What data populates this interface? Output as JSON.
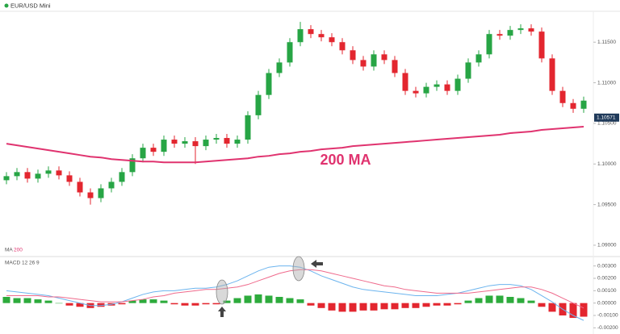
{
  "header": {
    "instrument": "EUR/USD Mini"
  },
  "chart_data": [
    {
      "type": "candlestick",
      "open": [
        1.098,
        1.0985,
        1.099,
        1.0982,
        1.0988,
        1.0992,
        1.0986,
        1.0978,
        1.0965,
        1.0958,
        1.097,
        1.0978,
        1.099,
        1.1007,
        1.102,
        1.1015,
        1.103,
        1.1025,
        1.1028,
        1.1022,
        1.103,
        1.1032,
        1.1025,
        1.103,
        1.106,
        1.1085,
        1.1112,
        1.1125,
        1.115,
        1.1166,
        1.116,
        1.1156,
        1.115,
        1.114,
        1.1128,
        1.112,
        1.1135,
        1.1128,
        1.1112,
        1.109,
        1.1087,
        1.1095,
        1.1098,
        1.109,
        1.1105,
        1.1125,
        1.1135,
        1.116,
        1.1158,
        1.1165,
        1.1167,
        1.1163,
        1.113,
        1.109,
        1.1075,
        1.1068
      ],
      "high": [
        1.099,
        1.0995,
        1.0995,
        1.0993,
        1.0997,
        1.0997,
        1.0991,
        1.0983,
        1.097,
        1.0975,
        1.0983,
        1.0995,
        1.1012,
        1.1025,
        1.1025,
        1.1035,
        1.1035,
        1.1033,
        1.1033,
        1.1035,
        1.1037,
        1.1037,
        1.1035,
        1.1065,
        1.109,
        1.1117,
        1.113,
        1.1155,
        1.1175,
        1.1171,
        1.1165,
        1.1161,
        1.1155,
        1.1145,
        1.1133,
        1.114,
        1.114,
        1.1133,
        1.1117,
        1.1095,
        1.11,
        1.1103,
        1.1103,
        1.111,
        1.113,
        1.114,
        1.1165,
        1.1165,
        1.117,
        1.1172,
        1.1172,
        1.1168,
        1.1135,
        1.1095,
        1.108,
        1.1083
      ],
      "low": [
        1.0975,
        1.098,
        1.0977,
        1.0977,
        1.0983,
        1.0981,
        1.0973,
        1.096,
        1.095,
        1.0953,
        1.0965,
        1.0973,
        1.0985,
        1.1002,
        1.101,
        1.101,
        1.102,
        1.102,
        1.1,
        1.1017,
        1.1025,
        1.102,
        1.102,
        1.1025,
        1.1055,
        1.108,
        1.1107,
        1.112,
        1.1145,
        1.1155,
        1.1151,
        1.1145,
        1.1135,
        1.1123,
        1.1115,
        1.1115,
        1.1123,
        1.1107,
        1.1085,
        1.1082,
        1.1082,
        1.109,
        1.1085,
        1.1085,
        1.11,
        1.112,
        1.113,
        1.1153,
        1.1153,
        1.116,
        1.1158,
        1.1125,
        1.1085,
        1.107,
        1.1063,
        1.1063
      ],
      "close": [
        1.0985,
        1.099,
        1.0982,
        1.0988,
        1.0992,
        1.0986,
        1.0978,
        1.0965,
        1.0958,
        1.097,
        1.0978,
        1.099,
        1.1007,
        1.102,
        1.1015,
        1.103,
        1.1025,
        1.1028,
        1.1022,
        1.103,
        1.1032,
        1.1025,
        1.103,
        1.106,
        1.1085,
        1.1112,
        1.1125,
        1.115,
        1.1166,
        1.116,
        1.1156,
        1.115,
        1.114,
        1.1128,
        1.112,
        1.1135,
        1.1128,
        1.1112,
        1.109,
        1.1087,
        1.1095,
        1.1098,
        1.109,
        1.1105,
        1.1125,
        1.1135,
        1.116,
        1.1158,
        1.1165,
        1.1167,
        1.1163,
        1.113,
        1.109,
        1.1075,
        1.1068,
        1.1078
      ],
      "up_color": "#27a545",
      "down_color": "#e3262f",
      "ma_label": "MA",
      "ma_period": 200,
      "ma_color": "#e0336f",
      "ma_values": [
        1.1025,
        1.1023,
        1.1021,
        1.1019,
        1.1017,
        1.1015,
        1.1013,
        1.1011,
        1.1009,
        1.1008,
        1.1006,
        1.1005,
        1.1004,
        1.1003,
        1.1003,
        1.1002,
        1.1002,
        1.1002,
        1.1002,
        1.1003,
        1.1004,
        1.1005,
        1.1006,
        1.1007,
        1.1009,
        1.101,
        1.1012,
        1.1013,
        1.1015,
        1.1016,
        1.1018,
        1.1019,
        1.102,
        1.1022,
        1.1023,
        1.1024,
        1.1025,
        1.1026,
        1.1027,
        1.1028,
        1.1029,
        1.103,
        1.1031,
        1.1032,
        1.1033,
        1.1034,
        1.1035,
        1.1036,
        1.1038,
        1.1039,
        1.104,
        1.1042,
        1.1043,
        1.1044,
        1.1045,
        1.1046
      ],
      "annotation": "200 MA",
      "price_tag": {
        "value": 1.10571,
        "label": "1.10571"
      },
      "ylim": [
        1.0889,
        1.1187
      ],
      "yticks": [
        {
          "value": 1.09,
          "label": "1.09000"
        },
        {
          "value": 1.095,
          "label": "1.09500"
        },
        {
          "value": 1.1,
          "label": "1.10000"
        },
        {
          "value": 1.105,
          "label": "1.10500"
        },
        {
          "value": 1.11,
          "label": "1.11000"
        },
        {
          "value": 1.115,
          "label": "1.11500"
        }
      ],
      "grid": false
    },
    {
      "type": "macd",
      "label": "MACD",
      "params": [
        12,
        26,
        9
      ],
      "histogram": [
        0.0005,
        0.0004,
        0.0004,
        0.0003,
        0.0002,
        0.0,
        -0.0002,
        -0.0003,
        -0.0004,
        -0.0003,
        -0.0002,
        -0.0001,
        0.0002,
        0.0003,
        0.0003,
        0.0002,
        -0.0001,
        -0.0002,
        -0.0002,
        -0.0001,
        -0.0001,
        0.0002,
        0.0004,
        0.0006,
        0.0007,
        0.0006,
        0.0005,
        0.0004,
        0.0003,
        -0.0002,
        -0.0004,
        -0.0006,
        -0.0007,
        -0.0007,
        -0.0006,
        -0.0006,
        -0.0005,
        -0.0005,
        -0.0004,
        -0.0004,
        -0.0003,
        -0.0002,
        -0.0002,
        -0.0001,
        0.0002,
        0.0004,
        0.0006,
        0.0006,
        0.0005,
        0.0004,
        0.0002,
        -0.0003,
        -0.0007,
        -0.001,
        -0.0012,
        -0.0011
      ],
      "up_color": "#2dab3c",
      "down_color": "#e3262f",
      "lines": [
        {
          "color": "#6cb4ee",
          "values": [
            0.001,
            0.0009,
            0.0008,
            0.0007,
            0.0006,
            0.0004,
            0.0002,
            0.0,
            -0.0002,
            -0.0002,
            -0.0001,
            0.0001,
            0.0004,
            0.0007,
            0.0009,
            0.001,
            0.001,
            0.0011,
            0.0012,
            0.0012,
            0.0013,
            0.0015,
            0.0018,
            0.0022,
            0.0026,
            0.0029,
            0.003,
            0.003,
            0.0029,
            0.0026,
            0.0022,
            0.0019,
            0.0016,
            0.0013,
            0.0011,
            0.001,
            0.0009,
            0.0008,
            0.0007,
            0.0006,
            0.0006,
            0.0006,
            0.0007,
            0.0008,
            0.001,
            0.0012,
            0.0014,
            0.0015,
            0.0015,
            0.0014,
            0.0011,
            0.0006,
            0.0001,
            -0.0005,
            -0.001,
            -0.0014
          ]
        },
        {
          "color": "#ef6a8c",
          "values": [
            0.0006,
            0.0006,
            0.0006,
            0.0006,
            0.0005,
            0.0005,
            0.0004,
            0.0003,
            0.0002,
            0.0001,
            0.0001,
            0.0001,
            0.0002,
            0.0003,
            0.0005,
            0.0006,
            0.0008,
            0.0009,
            0.001,
            0.0011,
            0.0011,
            0.0012,
            0.0013,
            0.0015,
            0.0018,
            0.0021,
            0.0024,
            0.0026,
            0.0027,
            0.0027,
            0.0026,
            0.0024,
            0.0022,
            0.002,
            0.0018,
            0.0016,
            0.0014,
            0.0013,
            0.0011,
            0.001,
            0.0009,
            0.0008,
            0.0008,
            0.0008,
            0.0008,
            0.0009,
            0.001,
            0.0011,
            0.0012,
            0.0013,
            0.0013,
            0.0011,
            0.0008,
            0.0004,
            0.0,
            -0.0004
          ]
        }
      ],
      "ylim": [
        -0.0025,
        0.0035
      ],
      "yticks": [
        {
          "value": -0.002,
          "label": "-0.00200"
        },
        {
          "value": -0.001,
          "label": "-0.00100"
        },
        {
          "value": 0,
          "label": "0.00000"
        },
        {
          "value": 0.001,
          "label": "0.00100"
        },
        {
          "value": 0.002,
          "label": "0.00200"
        },
        {
          "value": 0.003,
          "label": "0.00300"
        }
      ],
      "grid": false
    }
  ]
}
